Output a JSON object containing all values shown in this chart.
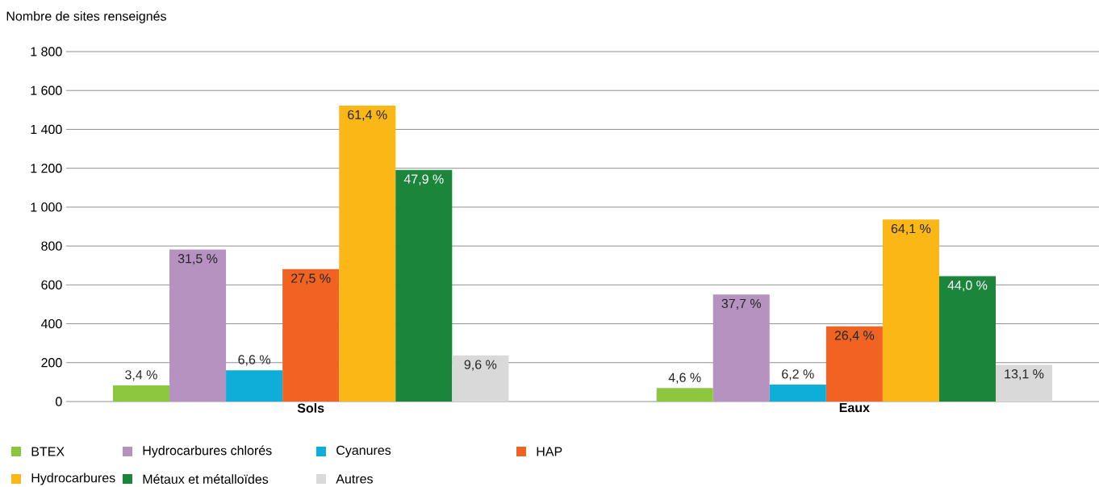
{
  "chart_data": {
    "type": "bar",
    "ylabel": "Nombre de sites renseignés",
    "categories": [
      "Sols",
      "Eaux"
    ],
    "series": [
      {
        "name": "BTEX",
        "color": "#8dc63f",
        "values": [
          83,
          69
        ]
      },
      {
        "name": "Hydrocarbures chlorés",
        "color": "#b592c0",
        "values": [
          782,
          551
        ]
      },
      {
        "name": "Cyanures",
        "color": "#0eaed9",
        "values": [
          161,
          87
        ]
      },
      {
        "name": "HAP",
        "color": "#f16322",
        "values": [
          681,
          387
        ]
      },
      {
        "name": "Hydrocarbures",
        "color": "#fbb715",
        "values": [
          1522,
          936
        ]
      },
      {
        "name": "Métaux et métalloïdes",
        "color": "#1a853b",
        "values": [
          1191,
          645
        ]
      },
      {
        "name": "Autres",
        "color": "#d9d9d9",
        "values": [
          237,
          189
        ]
      }
    ],
    "annotations": [
      "3,4 %",
      "31,5 %",
      "6,6 %",
      "27,5 %",
      "61,4 %",
      "47,9 %",
      "9,6 %",
      "4,6 %",
      "37,7 %",
      "6,2 %",
      "26,4 %",
      "64,1 %",
      "44,0 %",
      "13,1 %"
    ],
    "ylim": [
      0,
      1800
    ],
    "yticks": [
      {
        "value": 0,
        "label": "0"
      },
      {
        "value": 200,
        "label": "200"
      },
      {
        "value": 400,
        "label": "400"
      },
      {
        "value": 600,
        "label": "600"
      },
      {
        "value": 800,
        "label": "800"
      },
      {
        "value": 1000,
        "label": "1 000"
      },
      {
        "value": 1200,
        "label": "1 200"
      },
      {
        "value": 1400,
        "label": "1 400"
      },
      {
        "value": 1600,
        "label": "1 600"
      },
      {
        "value": 1800,
        "label": "1 800"
      }
    ],
    "grid": "y",
    "legend": "bottom"
  }
}
